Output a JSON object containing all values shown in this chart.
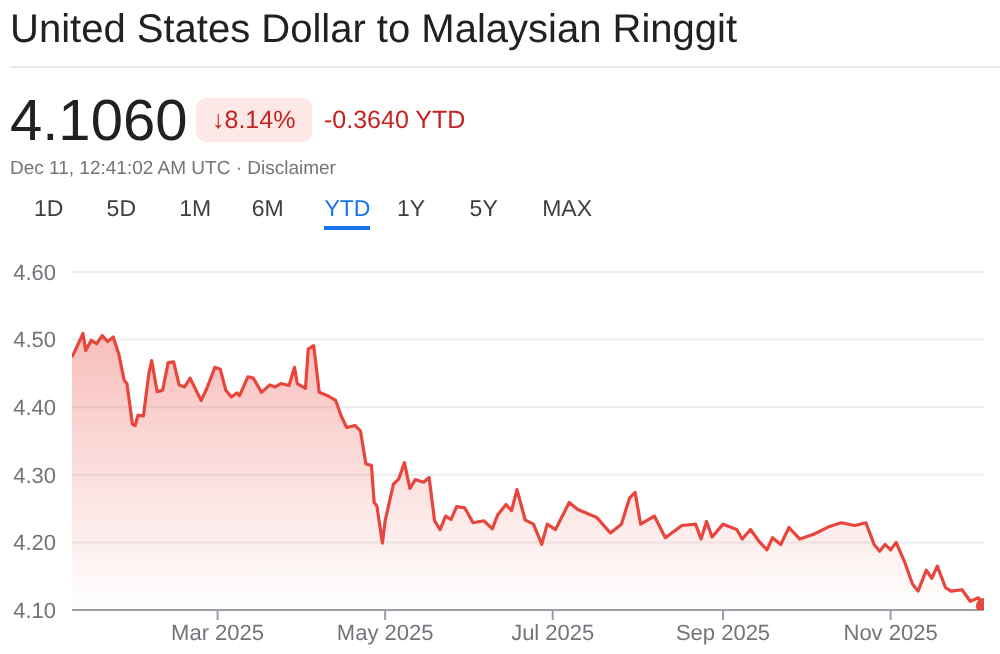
{
  "chart_data": {
    "type": "area",
    "title": "United States Dollar to Malaysian Ringgit",
    "annotations": [
      "4.1060",
      "↓8.14%",
      "-0.3640 YTD",
      "Dec 11, 12:41:02 AM UTC · Disclaimer",
      "1D",
      "5D",
      "1M",
      "6M",
      "YTD",
      "1Y",
      "5Y",
      "MAX"
    ],
    "x": [
      "2025-01-07",
      "2025-01-11",
      "2025-01-12",
      "2025-01-14",
      "2025-01-16",
      "2025-01-18",
      "2025-01-20",
      "2025-01-22",
      "2025-01-24",
      "2025-01-26",
      "2025-01-27",
      "2025-01-29",
      "2025-01-30",
      "2025-01-31",
      "2025-02-02",
      "2025-02-04",
      "2025-02-05",
      "2025-02-07",
      "2025-02-09",
      "2025-02-11",
      "2025-02-13",
      "2025-02-15",
      "2025-02-17",
      "2025-02-19",
      "2025-02-23",
      "2025-02-25",
      "2025-02-28",
      "2025-03-02",
      "2025-03-04",
      "2025-03-06",
      "2025-03-08",
      "2025-03-09",
      "2025-03-12",
      "2025-03-14",
      "2025-03-17",
      "2025-03-20",
      "2025-03-22",
      "2025-03-24",
      "2025-03-27",
      "2025-03-29",
      "2025-03-30",
      "2025-04-02",
      "2025-04-03",
      "2025-04-05",
      "2025-04-07",
      "2025-04-10",
      "2025-04-13",
      "2025-04-15",
      "2025-04-17",
      "2025-04-20",
      "2025-04-22",
      "2025-04-24",
      "2025-04-26",
      "2025-04-27",
      "2025-04-28",
      "2025-04-30",
      "2025-05-01",
      "2025-05-04",
      "2025-05-06",
      "2025-05-08",
      "2025-05-10",
      "2025-05-12",
      "2025-05-15",
      "2025-05-17",
      "2025-05-19",
      "2025-05-21",
      "2025-05-23",
      "2025-05-25",
      "2025-05-27",
      "2025-05-30",
      "2025-06-02",
      "2025-06-06",
      "2025-06-09",
      "2025-06-11",
      "2025-06-14",
      "2025-06-16",
      "2025-06-18",
      "2025-06-21",
      "2025-06-24",
      "2025-06-27",
      "2025-06-29",
      "2025-07-02",
      "2025-07-07",
      "2025-07-10",
      "2025-07-14",
      "2025-07-17",
      "2025-07-22",
      "2025-07-26",
      "2025-07-29",
      "2025-07-31",
      "2025-08-02",
      "2025-08-07",
      "2025-08-11",
      "2025-08-17",
      "2025-08-22",
      "2025-08-24",
      "2025-08-26",
      "2025-08-28",
      "2025-09-01",
      "2025-09-06",
      "2025-09-08",
      "2025-09-11",
      "2025-09-14",
      "2025-09-17",
      "2025-09-19",
      "2025-09-22",
      "2025-09-25",
      "2025-09-29",
      "2025-10-04",
      "2025-10-10",
      "2025-10-14",
      "2025-10-19",
      "2025-10-23",
      "2025-10-26",
      "2025-10-28",
      "2025-10-30",
      "2025-11-01",
      "2025-11-03",
      "2025-11-06",
      "2025-11-09",
      "2025-11-11",
      "2025-11-14",
      "2025-11-16",
      "2025-11-18",
      "2025-11-21",
      "2025-11-23",
      "2025-11-27",
      "2025-11-30",
      "2025-12-03",
      "2025-12-05"
    ],
    "series": [
      {
        "color": "#e8453c",
        "values": [
          4.474,
          4.509,
          4.484,
          4.499,
          4.494,
          4.506,
          4.497,
          4.504,
          4.479,
          4.44,
          4.435,
          4.375,
          4.373,
          4.388,
          4.387,
          4.45,
          4.469,
          4.423,
          4.425,
          4.466,
          4.467,
          4.433,
          4.43,
          4.443,
          4.41,
          4.427,
          4.459,
          4.456,
          4.425,
          4.415,
          4.421,
          4.417,
          4.445,
          4.443,
          4.422,
          4.433,
          4.43,
          4.435,
          4.432,
          4.459,
          4.435,
          4.428,
          4.486,
          4.491,
          4.422,
          4.417,
          4.41,
          4.387,
          4.37,
          4.373,
          4.365,
          4.316,
          4.314,
          4.259,
          4.254,
          4.199,
          4.232,
          4.286,
          4.294,
          4.318,
          4.28,
          4.293,
          4.289,
          4.296,
          4.232,
          4.219,
          4.239,
          4.234,
          4.253,
          4.251,
          4.229,
          4.232,
          4.22,
          4.241,
          4.256,
          4.247,
          4.278,
          4.233,
          4.227,
          4.197,
          4.227,
          4.219,
          4.259,
          4.249,
          4.242,
          4.237,
          4.214,
          4.227,
          4.266,
          4.274,
          4.227,
          4.239,
          4.207,
          4.225,
          4.227,
          4.205,
          4.231,
          4.208,
          4.227,
          4.219,
          4.205,
          4.219,
          4.202,
          4.189,
          4.207,
          4.197,
          4.222,
          4.205,
          4.212,
          4.224,
          4.229,
          4.225,
          4.229,
          4.197,
          4.187,
          4.197,
          4.189,
          4.2,
          4.172,
          4.138,
          4.128,
          4.159,
          4.147,
          4.165,
          4.133,
          4.128,
          4.13,
          4.113,
          4.118,
          4.106
        ]
      }
    ],
    "xlim": [
      "2025-01-07",
      "2025-12-05"
    ],
    "xticks": [
      {
        "value": "2025-03-01",
        "label": "Mar 2025"
      },
      {
        "value": "2025-05-01",
        "label": "May 2025"
      },
      {
        "value": "2025-07-01",
        "label": "Jul 2025"
      },
      {
        "value": "2025-09-01",
        "label": "Sep 2025"
      },
      {
        "value": "2025-11-01",
        "label": "Nov 2025"
      }
    ],
    "ylim": [
      4.1,
      4.6
    ],
    "yticks": [
      {
        "value": 4.1,
        "label": "4.10"
      },
      {
        "value": 4.2,
        "label": "4.20"
      },
      {
        "value": 4.3,
        "label": "4.30"
      },
      {
        "value": 4.4,
        "label": "4.40"
      },
      {
        "value": 4.5,
        "label": "4.50"
      },
      {
        "value": 4.6,
        "label": "4.60"
      }
    ],
    "grid": "y"
  }
}
